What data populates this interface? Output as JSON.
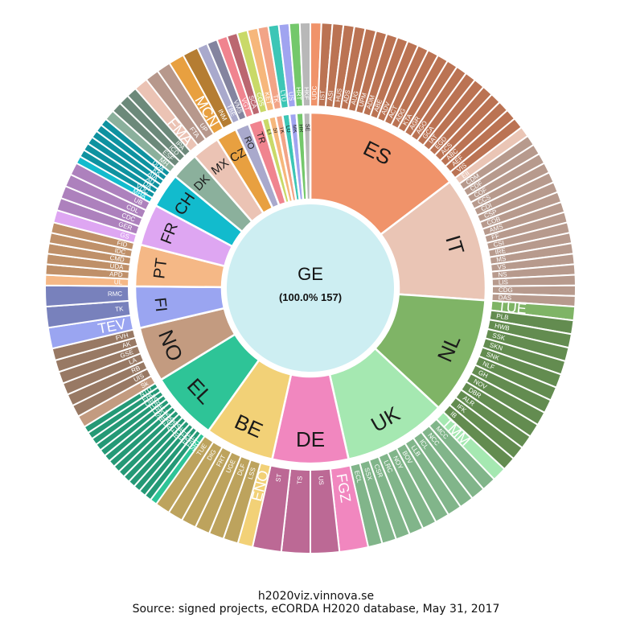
{
  "chart_data": {
    "type": "sunburst",
    "title": "",
    "center": {
      "label": "GE",
      "sublabel": "(100.0% 157)"
    },
    "footer": {
      "site": "h2020viz.vinnova.se",
      "source": "Source: signed projects, eCORDA H2020 database, May 31, 2017"
    },
    "ring_order_note": "",
    "countries": [
      {
        "code": "ES",
        "value": 23,
        "color": "#f0936a",
        "orgs": [
          "UDC",
          "IST",
          "ASI",
          "HUS",
          "ADS",
          "AUG",
          "UPM",
          "ADM",
          "ABE",
          "ADV",
          "ACT",
          "ADG",
          "KTA",
          "AGR",
          "AGO",
          "GCA",
          "IAT",
          "EGD",
          "ACS",
          "ABC",
          "AEF",
          "VIS"
        ]
      },
      {
        "code": "IT",
        "value": 18,
        "color": "#eac5b5",
        "orgs": [
          "EII",
          "CDM",
          "CDF",
          "COF",
          "CCS",
          "CDI",
          "CSP",
          "COB",
          "AMS",
          "FF",
          "CSI",
          "IRE",
          "MS",
          "VS",
          "NS",
          "LIS",
          "CDG",
          "DAS"
        ]
      },
      {
        "code": "NL",
        "value": 17,
        "color": "#7fb466",
        "orgs": [
          "TUE",
          "PLB",
          "HWB",
          "SSK",
          "SKN",
          "SNK",
          "NLF",
          "GH",
          "NOV",
          "DBR",
          "ALR",
          "IFK",
          "IB"
        ]
      },
      {
        "code": "UK",
        "value": 15,
        "color": "#a5e8b1",
        "orgs": [
          "TMM",
          "MCC",
          "NCC",
          "ICL",
          "LLB",
          "BOV",
          "NOY",
          "LRC",
          "CSR",
          "SSX",
          "ECL"
        ]
      },
      {
        "code": "DE",
        "value": 11,
        "color": "#f187bf",
        "orgs": [
          "FGZ",
          "US",
          "TS",
          "ST"
        ]
      },
      {
        "code": "BE",
        "value": 10,
        "color": "#f2d177",
        "orgs": [
          "ENO",
          "LSS",
          "DLF",
          "UGE",
          "FRT",
          "DIG",
          "TUE"
        ]
      },
      {
        "code": "EL",
        "value": 10,
        "color": "#2ec497",
        "orgs": [
          "SRT",
          "FAE",
          "EKE",
          "EEL",
          "ROE",
          "FTA",
          "ASK",
          "EAK",
          "BEK",
          "SPC",
          "LRE",
          "TUR",
          "ORA",
          "EHC",
          "NTU"
        ]
      },
      {
        "code": "NO",
        "value": 8,
        "color": "#c39b80",
        "orgs": [
          "Sk",
          "UIS",
          "RB",
          "LA",
          "GSE",
          "AK",
          "FVH"
        ]
      },
      {
        "code": "FI",
        "value": 6,
        "color": "#9aa5f1",
        "orgs": [
          "TEV",
          "TK",
          "RMC"
        ]
      },
      {
        "code": "PT",
        "value": 6,
        "color": "#f5b886",
        "orgs": [
          "UL",
          "APD",
          "UDA",
          "CMD",
          "IDC",
          "FID"
        ]
      },
      {
        "code": "FR",
        "value": 6,
        "color": "#dea6f2",
        "orgs": [
          "GS",
          "GER",
          "CDC",
          "CDL",
          "UB"
        ]
      },
      {
        "code": "CH",
        "value": 5,
        "color": "#12bbcd",
        "orgs": [
          "MHA",
          "VDC",
          "DA",
          "AU",
          "AIA",
          "KK",
          "DDA"
        ]
      },
      {
        "code": "DK",
        "value": 4,
        "color": "#8bb09c",
        "orgs": [
          "MH",
          "ESF",
          "ICD",
          "IPA"
        ]
      },
      {
        "code": "MX",
        "value": 4,
        "color": "#ebc3b4",
        "orgs": [
          "FMA",
          "FTA",
          "UP"
        ]
      },
      {
        "code": "CZ",
        "value": 3,
        "color": "#e8a040",
        "orgs": [
          "MCN",
          "INM"
        ]
      },
      {
        "code": "RO",
        "value": 2,
        "color": "#a9a9cc",
        "orgs": [
          "TBE",
          "VMS"
        ]
      },
      {
        "code": "TR",
        "value": 2,
        "color": "#f0848f",
        "orgs": [
          "VGT",
          "SCA"
        ]
      },
      {
        "code": "LT",
        "value": 1,
        "color": "#c9d968",
        "orgs": [
          "COS"
        ]
      },
      {
        "code": "SI",
        "value": 1,
        "color": "#f6b77b",
        "orgs": [
          "KET"
        ]
      },
      {
        "code": "TK",
        "value": 1,
        "color": "#f2a487",
        "orgs": [
          "TK"
        ]
      },
      {
        "code": "LU",
        "value": 1,
        "color": "#3cc6b6",
        "orgs": [
          "LTU"
        ]
      },
      {
        "code": "MK",
        "value": 1,
        "color": "#a0a4f0",
        "orgs": [
          "US"
        ]
      },
      {
        "code": "HR",
        "value": 1,
        "color": "#74c86b",
        "orgs": [
          "HRT"
        ]
      },
      {
        "code": "SE",
        "value": 1,
        "color": "#b8b8b8",
        "orgs": [
          "HKF"
        ]
      }
    ]
  }
}
